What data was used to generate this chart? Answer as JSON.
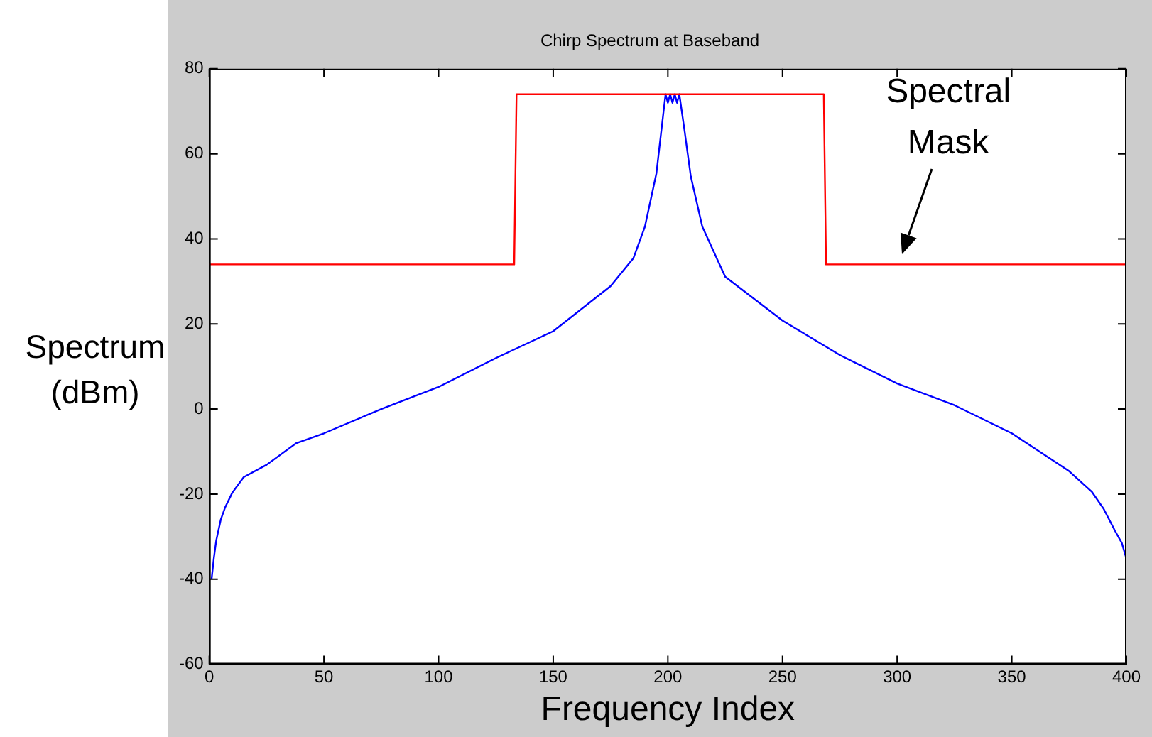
{
  "chart_data": {
    "type": "line",
    "title": "Chirp Spectrum at Baseband",
    "xlabel": "Frequency Index",
    "ylabel": "Spectrum (dBm)",
    "xlim": [
      0,
      400
    ],
    "xticks": [
      0,
      50,
      100,
      150,
      200,
      250,
      300,
      350,
      400
    ],
    "ylim": [
      -60,
      80
    ],
    "yticks": [
      -60,
      -40,
      -20,
      0,
      20,
      40,
      60,
      80
    ],
    "grid": false,
    "legend": false,
    "marker": "none",
    "line_style": "solid",
    "annotations": [
      {
        "text": "Spectral Mask",
        "x": 300,
        "y": 35
      }
    ],
    "series": [
      {
        "color": "#ff0000",
        "x": [
          0,
          133,
          134,
          268,
          269,
          400
        ],
        "values": [
          34,
          34,
          74,
          74,
          34,
          34
        ]
      },
      {
        "color": "#0000ff",
        "x": [
          1,
          2,
          3,
          5,
          7,
          10,
          15,
          25,
          38,
          50,
          75,
          100,
          125,
          150,
          175,
          185,
          190,
          195,
          198,
          199,
          200,
          201,
          202,
          203,
          204,
          205,
          207,
          210,
          215,
          225,
          250,
          275,
          300,
          325,
          350,
          375,
          385,
          390,
          395,
          398,
          400
        ],
        "values": [
          -40,
          -35,
          -31,
          -26,
          -23,
          -19.7,
          -16,
          -13.1,
          -8,
          -5.7,
          0,
          5.2,
          12,
          18.3,
          28.9,
          35.5,
          42.9,
          55.4,
          69.4,
          74,
          72,
          74,
          72,
          74,
          72,
          74,
          66.5,
          54.7,
          42.9,
          31.1,
          20.8,
          12.7,
          6,
          0.9,
          -5.7,
          -14.6,
          -19.5,
          -23.4,
          -28.6,
          -31.5,
          -35.2
        ]
      }
    ]
  }
}
